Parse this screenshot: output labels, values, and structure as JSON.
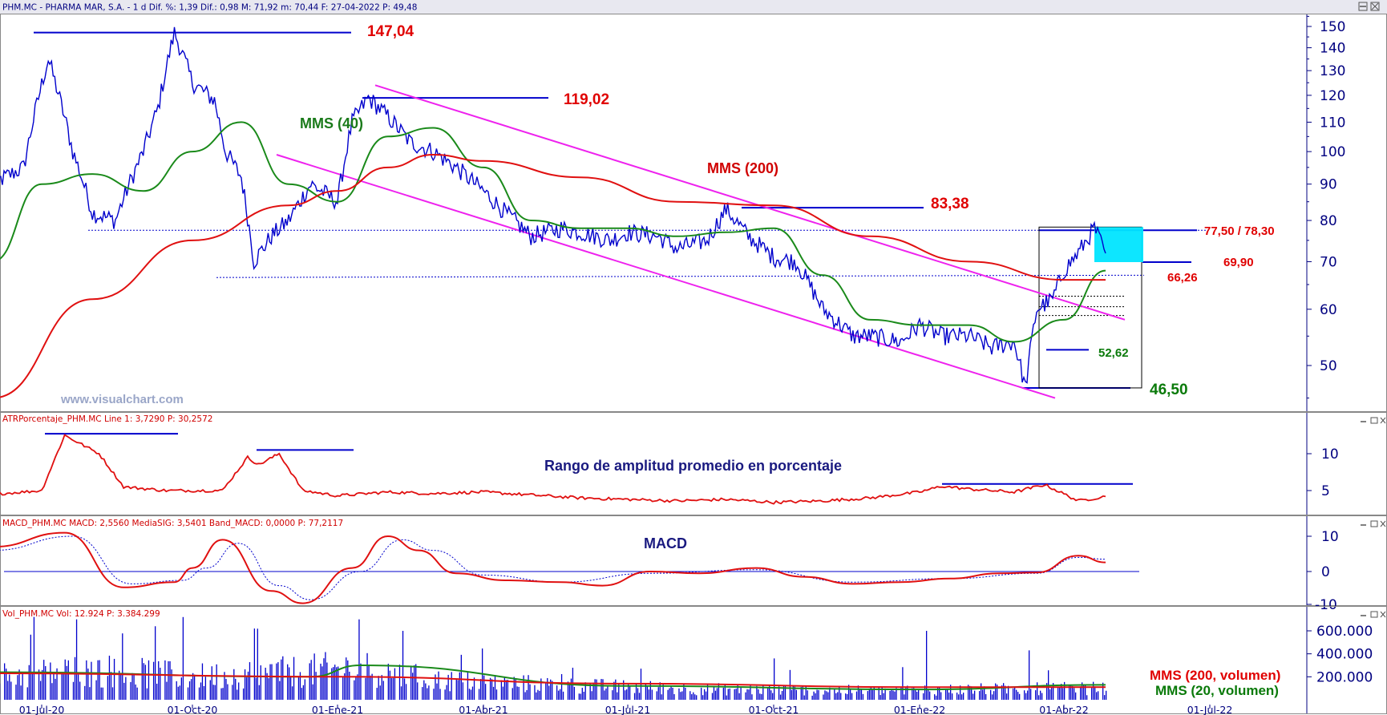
{
  "header": {
    "symbol_text": "PHM.MC - PHARMA MAR, S.A. -  1 d  Dif. %: 1,39  Dif.: 0,98  M: 71,92  m: 70,44  F: 27-04-2022  P: 49,48"
  },
  "panels": {
    "atr": {
      "title": "ATRPorcentaje_PHM.MC  Line 1: 3,7290  P: 30,2572",
      "annotation": "Rango de amplitud promedio en porcentaje"
    },
    "macd": {
      "title": "MACD_PHM.MC  MACD: 2,5560  MediaSIG: 3,5401  Band_MACD: 0,0000  P: 77,2117",
      "annotation": "MACD"
    },
    "vol": {
      "title": "Vol_PHM.MC  Vol: 12.924  P: 3.384.299"
    }
  },
  "labels": {
    "lvl_147": "147,04",
    "lvl_119": "119,02",
    "lvl_83": "83,38",
    "lvl_7750": "77,50 / 78,30",
    "lvl_6990": "69,90",
    "lvl_6626": "66,26",
    "lvl_5262": "52,62",
    "lvl_4650": "46,50",
    "mms40": "MMS (40)",
    "mms200": "MMS (200)",
    "watermark": "www.visualchart.com",
    "vol_mms200": "MMS (200, volumen)",
    "vol_mms20": "MMS (20, volumen)"
  },
  "colors": {
    "price": "#0000cc",
    "mms40": "#1a8a1a",
    "mms200": "#e01010",
    "channel": "#ee22ee",
    "level": "#0000cc",
    "highlight": "#00e5ff"
  },
  "chart_data": [
    {
      "type": "line",
      "title": "PHM.MC - PHARMA MAR, S.A.",
      "x_ticks": [
        "01-Jul-20",
        "01-Oct-20",
        "01-Ene-21",
        "01-Abr-21",
        "01-Jul-21",
        "01-Oct-21",
        "01-Ene-22",
        "01-Abr-22",
        "01-Jul-22"
      ],
      "y_ticks": [
        150,
        140,
        130,
        120,
        110,
        100,
        90,
        80,
        70,
        60,
        50
      ],
      "y_scale": "log",
      "ylim": [
        43,
        155
      ],
      "series": [
        {
          "name": "PHM.MC",
          "x": [
            "2020-06-01",
            "2020-06-20",
            "2020-07-05",
            "2020-07-20",
            "2020-08-01",
            "2020-08-15",
            "2020-09-01",
            "2020-09-10",
            "2020-09-20",
            "2020-10-01",
            "2020-10-15",
            "2020-10-22",
            "2020-11-01",
            "2020-11-09",
            "2020-11-20",
            "2020-12-01",
            "2020-12-15",
            "2021-01-01",
            "2021-01-10",
            "2021-01-20",
            "2021-02-01",
            "2021-02-15",
            "2021-03-01",
            "2021-03-15",
            "2021-04-01",
            "2021-04-15",
            "2021-05-01",
            "2021-05-20",
            "2021-06-01",
            "2021-06-20",
            "2021-07-01",
            "2021-07-20",
            "2021-08-01",
            "2021-08-20",
            "2021-09-01",
            "2021-09-15",
            "2021-10-01",
            "2021-10-15",
            "2021-11-01",
            "2021-11-20",
            "2021-12-01",
            "2021-12-20",
            "2022-01-01",
            "2022-01-15",
            "2022-02-01",
            "2022-02-15",
            "2022-03-01",
            "2022-03-08",
            "2022-03-15",
            "2022-03-25",
            "2022-04-01",
            "2022-04-10",
            "2022-04-20",
            "2022-04-27"
          ],
          "values": [
            90,
            95,
            135,
            100,
            82,
            80,
            100,
            115,
            147,
            125,
            118,
            100,
            92,
            70,
            76,
            80,
            90,
            85,
            110,
            119,
            112,
            103,
            100,
            95,
            88,
            82,
            76,
            78,
            77,
            75,
            77,
            76,
            73,
            75,
            83,
            76,
            71,
            70,
            60,
            55,
            55,
            54,
            57,
            55,
            55,
            53,
            54,
            46.5,
            60,
            62,
            68,
            72,
            78,
            71.92
          ]
        },
        {
          "name": "MMS (40)",
          "x": [
            "2020-06-01",
            "2020-07-01",
            "2020-08-01",
            "2020-09-01",
            "2020-10-01",
            "2020-11-01",
            "2020-12-01",
            "2021-01-01",
            "2021-02-01",
            "2021-03-01",
            "2021-04-01",
            "2021-05-01",
            "2021-06-01",
            "2021-07-01",
            "2021-08-01",
            "2021-09-01",
            "2021-10-01",
            "2021-11-01",
            "2021-12-01",
            "2022-01-01",
            "2022-02-01",
            "2022-03-01",
            "2022-04-01",
            "2022-04-27"
          ],
          "values": [
            70,
            90,
            93,
            88,
            100,
            110,
            90,
            85,
            105,
            108,
            95,
            80,
            78,
            78,
            76,
            77,
            78,
            67,
            58,
            57,
            57,
            54,
            58,
            68
          ]
        },
        {
          "name": "MMS (200)",
          "x": [
            "2020-06-01",
            "2020-08-01",
            "2020-10-01",
            "2020-12-01",
            "2021-01-01",
            "2021-02-01",
            "2021-03-01",
            "2021-04-01",
            "2021-06-01",
            "2021-08-01",
            "2021-10-01",
            "2021-12-01",
            "2022-02-01",
            "2022-04-01",
            "2022-04-27"
          ],
          "values": [
            45,
            62,
            75,
            84,
            88,
            95,
            99,
            97,
            92,
            85,
            84,
            76,
            70,
            66,
            66
          ]
        }
      ],
      "annotations": [
        "147,04",
        "119,02",
        "83,38",
        "77,50 / 78,30",
        "69,90",
        "66,26",
        "52,62",
        "46,50",
        "MMS (40)",
        "MMS (200)"
      ]
    },
    {
      "type": "line",
      "title": "ATRPorcentaje_PHM.MC",
      "y_ticks": [
        10,
        5
      ],
      "ylim": [
        0,
        14
      ],
      "series": [
        {
          "name": "ATRPorcentaje",
          "x": [
            "2020-06-01",
            "2020-07-01",
            "2020-07-15",
            "2020-08-05",
            "2020-08-20",
            "2020-09-15",
            "2020-10-20",
            "2020-11-05",
            "2020-11-12",
            "2020-11-25",
            "2020-12-10",
            "2021-01-01",
            "2021-02-01",
            "2021-03-01",
            "2021-04-01",
            "2021-05-01",
            "2021-06-01",
            "2021-07-01",
            "2021-08-01",
            "2021-09-01",
            "2021-10-01",
            "2021-11-01",
            "2021-12-01",
            "2022-01-01",
            "2022-01-15",
            "2022-02-01",
            "2022-03-01",
            "2022-03-20",
            "2022-04-10",
            "2022-04-27"
          ],
          "values": [
            4.5,
            5,
            12.5,
            10,
            5.5,
            5,
            5,
            9.5,
            8.5,
            10,
            5,
            4.3,
            4.8,
            4.6,
            4.8,
            4.4,
            4,
            3.8,
            3.6,
            3.8,
            3.4,
            3.6,
            4,
            4.8,
            5.6,
            5.2,
            4.8,
            5.8,
            3.6,
            4.2
          ]
        }
      ]
    },
    {
      "type": "line",
      "title": "MACD_PHM.MC",
      "y_ticks": [
        10,
        0,
        -10
      ],
      "ylim": [
        -10,
        12
      ],
      "series": [
        {
          "name": "MACD",
          "x": [
            "2020-06-01",
            "2020-07-15",
            "2020-08-20",
            "2020-09-20",
            "2020-10-01",
            "2020-10-20",
            "2020-11-20",
            "2020-12-10",
            "2021-01-10",
            "2021-02-01",
            "2021-02-20",
            "2021-03-15",
            "2021-04-15",
            "2021-05-20",
            "2021-06-15",
            "2021-07-15",
            "2021-08-15",
            "2021-09-20",
            "2021-10-20",
            "2021-11-20",
            "2021-12-20",
            "2022-01-20",
            "2022-02-20",
            "2022-03-15",
            "2022-04-10",
            "2022-04-27"
          ],
          "values": [
            7,
            11,
            -4.5,
            -3,
            1,
            9,
            -5.5,
            -9,
            1,
            10,
            6,
            -0.5,
            -2.5,
            -3,
            -4,
            0,
            -0.5,
            1,
            -1.5,
            -3.5,
            -3,
            -2,
            -0.5,
            -0.3,
            4.5,
            2.6
          ]
        },
        {
          "name": "MediaSIG",
          "x": [
            "2020-06-01",
            "2020-07-20",
            "2020-08-25",
            "2020-09-25",
            "2020-10-10",
            "2020-10-30",
            "2020-11-25",
            "2020-12-15",
            "2021-01-15",
            "2021-02-10",
            "2021-03-01",
            "2021-04-01",
            "2021-05-20",
            "2021-07-15",
            "2021-09-20",
            "2021-11-20",
            "2022-01-20",
            "2022-03-15",
            "2022-04-10",
            "2022-04-27"
          ],
          "values": [
            6,
            10,
            -3.5,
            -2.5,
            1,
            8,
            -4,
            -8,
            0,
            9,
            6,
            -1,
            -3,
            -0.5,
            0.5,
            -3,
            -2,
            -0.5,
            4,
            3.5
          ]
        }
      ]
    },
    {
      "type": "bar",
      "title": "Vol_PHM.MC",
      "y_ticks": [
        600000,
        400000,
        200000
      ],
      "ylim": [
        0,
        700000
      ],
      "series": [
        {
          "name": "Vol",
          "note": "daily volume bars"
        },
        {
          "name": "MMS (200, volumen)",
          "x": [
            "2020-06-01",
            "2021-01-01",
            "2021-07-01",
            "2022-01-01",
            "2022-04-27"
          ],
          "values": [
            230000,
            200000,
            140000,
            110000,
            110000
          ]
        },
        {
          "name": "MMS (20, volumen)",
          "x": [
            "2020-06-01",
            "2020-12-15",
            "2021-01-15",
            "2021-07-01",
            "2022-01-01",
            "2022-04-27"
          ],
          "values": [
            240000,
            200000,
            300000,
            120000,
            90000,
            130000
          ]
        }
      ]
    }
  ]
}
